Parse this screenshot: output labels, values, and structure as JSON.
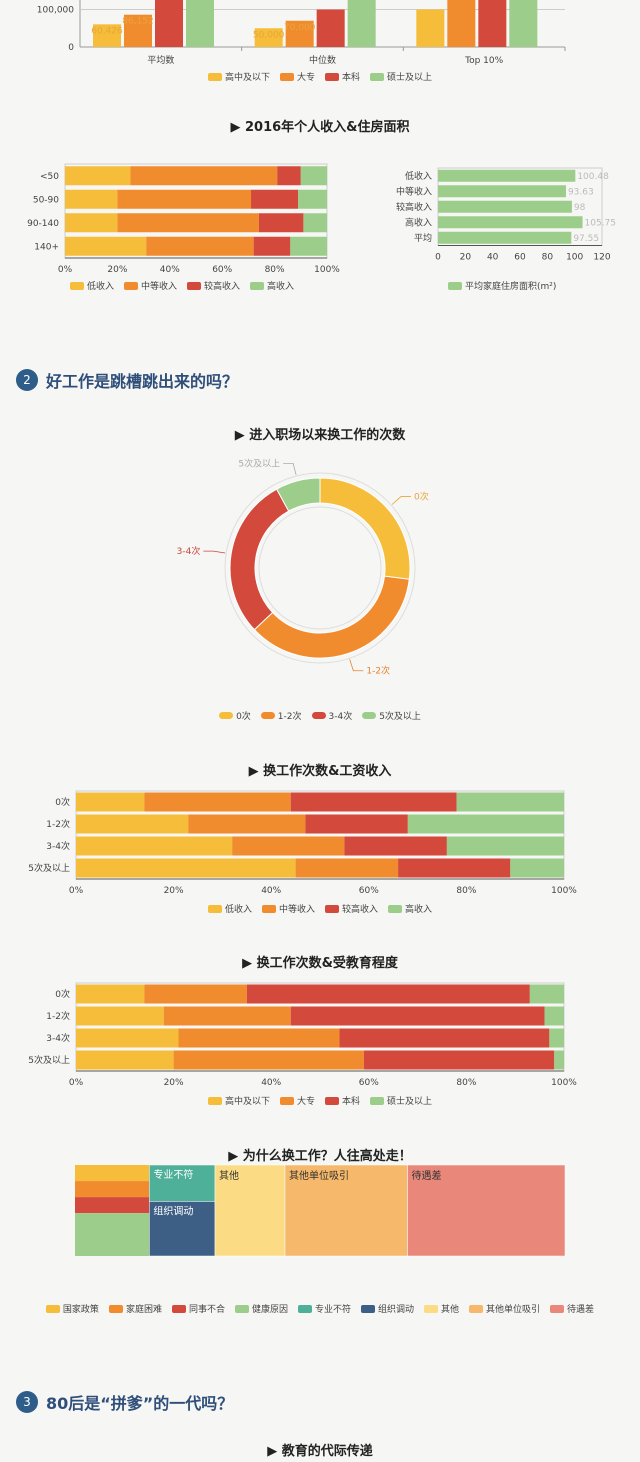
{
  "colors": {
    "yellow": "#f5bd3a",
    "orange": "#f08c2e",
    "red": "#d34a3c",
    "green": "#9ccd8a",
    "teal": "#4fb09a",
    "navy": "#3d5f86",
    "lightYellow": "#fbdc84",
    "peach": "#f6b86a",
    "salmon": "#e8877a",
    "section": "#2f5d8a"
  },
  "sections": [
    {
      "num": "2",
      "title": "好工作是跳槽跳出来的吗？"
    },
    {
      "num": "3",
      "title": "80后是“拼爹”的一代吗？"
    }
  ],
  "chart_data": [
    {
      "id": "education_income",
      "type": "bar",
      "categories": [
        "平均数",
        "中位数",
        "Top 10%"
      ],
      "series": [
        {
          "name": "高中及以下",
          "values": [
            60426,
            50000,
            100000
          ]
        },
        {
          "name": "大专",
          "values": [
            86152,
            70000,
            null
          ]
        },
        {
          "name": "本科",
          "values": [
            null,
            100000,
            null
          ]
        },
        {
          "name": "硕士及以上",
          "values": [
            null,
            null,
            null
          ]
        }
      ],
      "y_ticks": [
        "0",
        "100,000"
      ],
      "value_labels": [
        "60,426",
        "86,152",
        "50,000",
        "70,000"
      ],
      "legend": [
        "高中及以下",
        "大专",
        "本科",
        "硕士及以上"
      ]
    },
    {
      "id": "income_housing_title",
      "title": "2016年个人收入&住房面积"
    },
    {
      "id": "housing_income_share",
      "type": "bar",
      "orientation": "horizontal",
      "stacked": true,
      "categories": [
        "<50",
        "50-90",
        "90-140",
        "140+"
      ],
      "series": [
        {
          "name": "低收入",
          "values": [
            25,
            20,
            20,
            31
          ]
        },
        {
          "name": "中等收入",
          "values": [
            56,
            51,
            54,
            41
          ]
        },
        {
          "name": "较高收入",
          "values": [
            9,
            18,
            17,
            14
          ]
        },
        {
          "name": "高收入",
          "values": [
            10,
            11,
            9,
            14
          ]
        }
      ],
      "x_ticks": [
        "0%",
        "20%",
        "40%",
        "60%",
        "80%",
        "100%"
      ],
      "legend": [
        "低收入",
        "中等收入",
        "较高收入",
        "高收入"
      ]
    },
    {
      "id": "housing_area",
      "type": "bar",
      "orientation": "horizontal",
      "categories": [
        "低收入",
        "中等收入",
        "较高收入",
        "高收入",
        "平均"
      ],
      "values": [
        100.48,
        93.63,
        98,
        105.75,
        97.55
      ],
      "value_labels": [
        "100.48",
        "93.63",
        "98",
        "105.75",
        "97.55"
      ],
      "x_ticks": [
        "0",
        "20",
        "40",
        "60",
        "80",
        "100",
        "120"
      ],
      "xlim": [
        0,
        120
      ],
      "legend": [
        "平均家庭住房面积(m²)"
      ]
    },
    {
      "id": "job_changes",
      "type": "pie",
      "donut": true,
      "title": "进入职场以来换工作的次数",
      "categories": [
        "0次",
        "1-2次",
        "3-4次",
        "5次及以上"
      ],
      "values": [
        27,
        36,
        29,
        8
      ],
      "legend": [
        "0次",
        "1-2次",
        "3-4次",
        "5次及以上"
      ]
    },
    {
      "id": "changes_income",
      "type": "bar",
      "orientation": "horizontal",
      "stacked": true,
      "title": "换工作次数&工资收入",
      "categories": [
        "0次",
        "1-2次",
        "3-4次",
        "5次及以上"
      ],
      "series": [
        {
          "name": "低收入",
          "values": [
            14,
            23,
            32,
            45
          ]
        },
        {
          "name": "中等收入",
          "values": [
            30,
            24,
            23,
            21
          ]
        },
        {
          "name": "较高收入",
          "values": [
            34,
            21,
            21,
            23
          ]
        },
        {
          "name": "高收入",
          "values": [
            22,
            32,
            24,
            11
          ]
        }
      ],
      "x_ticks": [
        "0%",
        "20%",
        "40%",
        "60%",
        "80%",
        "100%"
      ],
      "legend": [
        "低收入",
        "中等收入",
        "较高收入",
        "高收入"
      ]
    },
    {
      "id": "changes_education",
      "type": "bar",
      "orientation": "horizontal",
      "stacked": true,
      "title": "换工作次数&受教育程度",
      "categories": [
        "0次",
        "1-2次",
        "3-4次",
        "5次及以上"
      ],
      "series": [
        {
          "name": "高中及以下",
          "values": [
            14,
            18,
            21,
            20
          ]
        },
        {
          "name": "大专",
          "values": [
            21,
            26,
            33,
            39
          ]
        },
        {
          "name": "本科",
          "values": [
            58,
            52,
            43,
            39
          ]
        },
        {
          "name": "硕士及以上",
          "values": [
            7,
            4,
            3,
            2
          ]
        }
      ],
      "x_ticks": [
        "0%",
        "20%",
        "40%",
        "60%",
        "80%",
        "100%"
      ],
      "legend": [
        "高中及以下",
        "大专",
        "本科",
        "硕士及以上"
      ]
    },
    {
      "id": "why_change",
      "type": "treemap",
      "title": "为什么换工作？人往高处走！",
      "categories": [
        "国家政策",
        "家庭困难",
        "同事不合",
        "健康原因",
        "专业不符",
        "组织调动",
        "其他",
        "其他单位吸引",
        "待遇差"
      ],
      "values": [
        3,
        3,
        3,
        8,
        6,
        9,
        16,
        28,
        36
      ],
      "box_labels": [
        "专业不符",
        "组织调动",
        "其他",
        "其他单位吸引",
        "待遇差"
      ],
      "legend": [
        "国家政策",
        "家庭困难",
        "同事不合",
        "健康原因",
        "专业不符",
        "组织调动",
        "其他",
        "其他单位吸引",
        "待遇差"
      ]
    },
    {
      "id": "education_transmission",
      "title": "教育的代际传递"
    }
  ]
}
